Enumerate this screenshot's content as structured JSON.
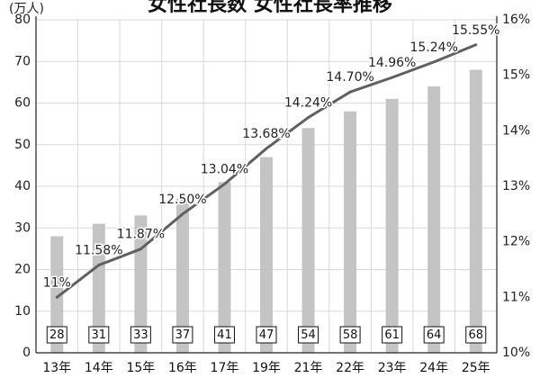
{
  "chart_data": {
    "type": "bar",
    "title": "女性社長数 女性社長率推移",
    "y_unit": "(万人)",
    "categories": [
      "13年",
      "14年",
      "15年",
      "16年",
      "17年",
      "19年",
      "21年",
      "22年",
      "23年",
      "24年",
      "25年"
    ],
    "series": [
      {
        "type": "bar",
        "values": [
          28,
          31,
          33,
          37,
          41,
          47,
          54,
          58,
          61,
          64,
          68
        ],
        "value_labels": [
          "28",
          "31",
          "33",
          "37",
          "41",
          "47",
          "54",
          "58",
          "61",
          "64",
          "68"
        ]
      },
      {
        "type": "line",
        "values": [
          11.0,
          11.58,
          11.87,
          12.5,
          13.04,
          13.68,
          14.24,
          14.7,
          14.96,
          15.24,
          15.55
        ],
        "value_labels": [
          "11%",
          "11.58%",
          "11.87%",
          "12.50%",
          "13.04%",
          "13.68%",
          "14.24%",
          "14.70%",
          "14.96%",
          "15.24%",
          "15.55%"
        ]
      }
    ],
    "y_left": {
      "ylim": [
        0,
        80
      ],
      "ticks": [
        0,
        10,
        20,
        30,
        40,
        50,
        60,
        70,
        80
      ],
      "tick_labels": [
        "0",
        "10",
        "20",
        "30",
        "40",
        "50",
        "60",
        "70",
        "80"
      ]
    },
    "y_right": {
      "ylim": [
        10,
        16
      ],
      "ticks": [
        10,
        11,
        12,
        13,
        14,
        15,
        16
      ],
      "tick_labels": [
        "10%",
        "11%",
        "12%",
        "13%",
        "14%",
        "15%",
        "16%"
      ]
    },
    "grid": true,
    "colors": {
      "bar": "#c4c4c4",
      "line": "#606060",
      "grid": "#d8d8d8",
      "axis": "#222222"
    }
  }
}
